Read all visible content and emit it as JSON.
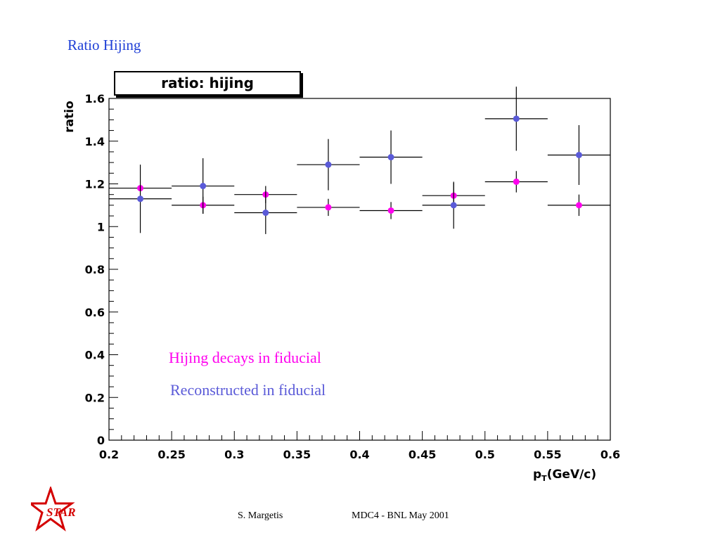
{
  "slide": {
    "title": "Ratio Hijing",
    "footer_author": "S. Margetis",
    "footer_event": "MDC4 -  BNL May 2001",
    "logo_text": "STAR"
  },
  "colors": {
    "title": "#1f3fd6",
    "hijing": "#ff00ee",
    "reco": "#5a5ad8",
    "logo": "#d40000"
  },
  "chart_data": {
    "type": "scatter",
    "title": "ratio: hijing",
    "xlabel_main": "p",
    "xlabel_sub": "T",
    "xlabel_unit": "(GeV/c)",
    "ylabel": "ratio",
    "xlim": [
      0.2,
      0.6
    ],
    "ylim": [
      0,
      1.6
    ],
    "x_ticks": [
      "0.2",
      "0.25",
      "0.3",
      "0.35",
      "0.4",
      "0.45",
      "0.5",
      "0.55",
      "0.6"
    ],
    "y_ticks": [
      "0",
      "0.2",
      "0.4",
      "0.6",
      "0.8",
      "1",
      "1.2",
      "1.4",
      "1.6"
    ],
    "bin_half_width": 0.025,
    "series": [
      {
        "name": "Hijing decays in fiducial",
        "color": "#ff00ee",
        "x": [
          0.225,
          0.275,
          0.325,
          0.375,
          0.425,
          0.475,
          0.525,
          0.575
        ],
        "y": [
          1.18,
          1.1,
          1.15,
          1.09,
          1.075,
          1.145,
          1.21,
          1.1
        ],
        "yerr": [
          0.0,
          0.04,
          0.04,
          0.04,
          0.04,
          0.06,
          0.05,
          0.05
        ]
      },
      {
        "name": "Reconstructed in fiducial",
        "color": "#5a5ad8",
        "x": [
          0.225,
          0.275,
          0.325,
          0.375,
          0.425,
          0.475,
          0.525,
          0.575
        ],
        "y": [
          1.13,
          1.19,
          1.065,
          1.29,
          1.325,
          1.1,
          1.505,
          1.335
        ],
        "yerr": [
          0.16,
          0.13,
          0.1,
          0.12,
          0.125,
          0.11,
          0.15,
          0.14
        ]
      }
    ],
    "legend_placement": "inside-lower-left"
  }
}
